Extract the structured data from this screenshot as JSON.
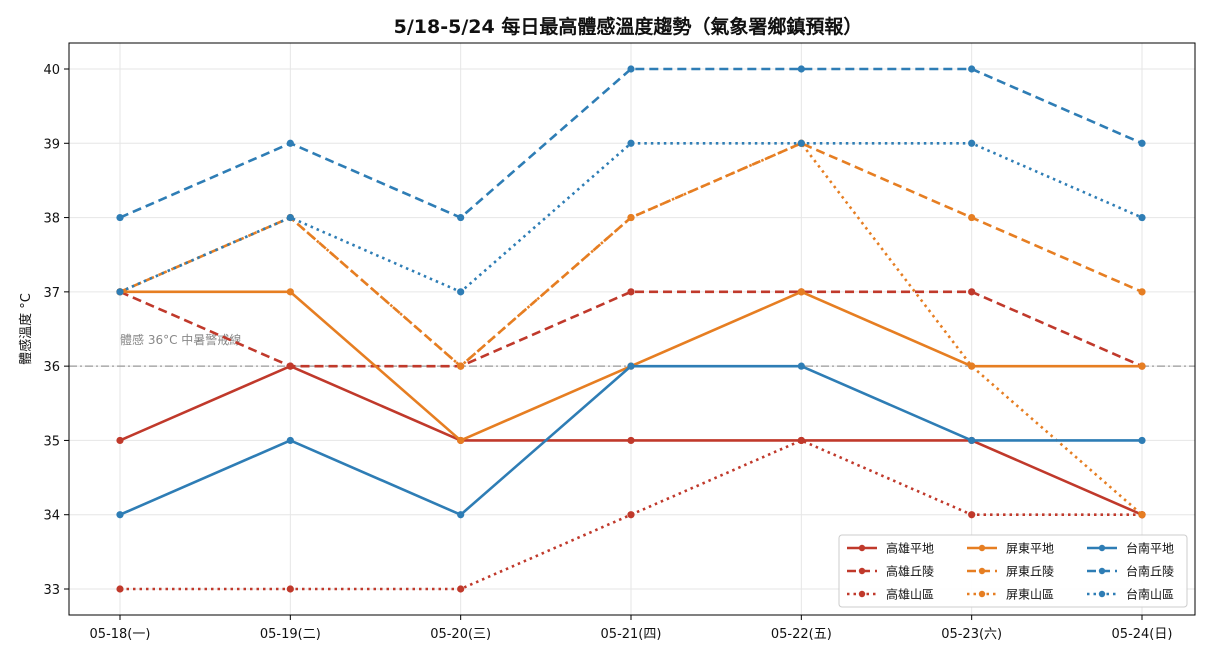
{
  "chart_data": {
    "type": "line",
    "title": "5/18-5/24 每日最高體感溫度趨勢（氣象署鄉鎮預報）",
    "xlabel": "",
    "ylabel": "體感溫度 °C",
    "categories": [
      "05-18(一)",
      "05-19(二)",
      "05-20(三)",
      "05-21(四)",
      "05-22(五)",
      "05-23(六)",
      "05-24(日)"
    ],
    "ylim": [
      32.65,
      40.35
    ],
    "yticks": [
      33,
      34,
      35,
      36,
      37,
      38,
      39,
      40
    ],
    "grid": true,
    "legend_position": "bottom-right",
    "reference_line": {
      "value": 36,
      "label": "體感 36°C 中暑警戒線",
      "color": "#999999"
    },
    "series": [
      {
        "name": "高雄平地",
        "color": "#c0392b",
        "style": "solid",
        "values": [
          35,
          36,
          35,
          35,
          35,
          35,
          34
        ]
      },
      {
        "name": "高雄丘陵",
        "color": "#c0392b",
        "style": "dashed",
        "values": [
          37,
          36,
          36,
          37,
          37,
          37,
          36
        ]
      },
      {
        "name": "高雄山區",
        "color": "#c0392b",
        "style": "dotted",
        "values": [
          33,
          33,
          33,
          34,
          35,
          34,
          34
        ]
      },
      {
        "name": "屏東平地",
        "color": "#e67e22",
        "style": "solid",
        "values": [
          37,
          37,
          35,
          36,
          37,
          36,
          36
        ]
      },
      {
        "name": "屏東丘陵",
        "color": "#e67e22",
        "style": "dashed",
        "values": [
          37,
          38,
          36,
          38,
          39,
          38,
          37
        ]
      },
      {
        "name": "屏東山區",
        "color": "#e67e22",
        "style": "dotted",
        "values": [
          37,
          38,
          36,
          38,
          39,
          36,
          34
        ]
      },
      {
        "name": "台南平地",
        "color": "#2e7db5",
        "style": "solid",
        "values": [
          34,
          35,
          34,
          36,
          36,
          35,
          35
        ]
      },
      {
        "name": "台南丘陵",
        "color": "#2e7db5",
        "style": "dashed",
        "values": [
          38,
          39,
          38,
          40,
          40,
          40,
          39
        ]
      },
      {
        "name": "台南山區",
        "color": "#2e7db5",
        "style": "dotted",
        "values": [
          37,
          38,
          37,
          39,
          39,
          39,
          38
        ]
      }
    ]
  }
}
